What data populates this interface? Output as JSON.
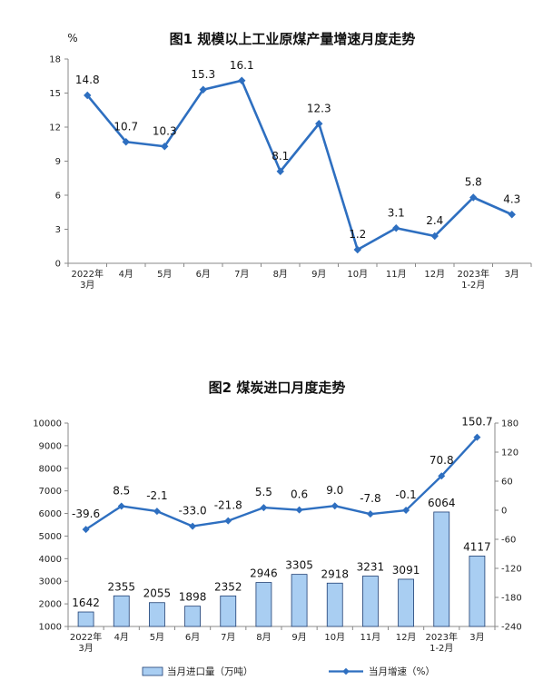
{
  "chart_data": [
    {
      "type": "line",
      "title": "图1  规模以上工业原煤产量增速月度走势",
      "ylabel": "%",
      "ylim": [
        0,
        18
      ],
      "yticks": [
        "0",
        "3",
        "6",
        "9",
        "12",
        "15",
        "18"
      ],
      "categories": [
        [
          "2022年",
          "3月"
        ],
        [
          "4月"
        ],
        [
          "5月"
        ],
        [
          "6月"
        ],
        [
          "7月"
        ],
        [
          "8月"
        ],
        [
          "9月"
        ],
        [
          "10月"
        ],
        [
          "11月"
        ],
        [
          "12月"
        ],
        [
          "2023年",
          "1-2月"
        ],
        [
          "3月"
        ]
      ],
      "series": [
        {
          "values": [
            14.8,
            10.7,
            10.3,
            15.3,
            16.1,
            8.1,
            12.3,
            1.2,
            3.1,
            2.4,
            5.8,
            4.3
          ],
          "labels": [
            "14.8",
            "10.7",
            "10.3",
            "15.3",
            "16.1",
            "8.1",
            "12.3",
            "1.2",
            "3.1",
            "2.4",
            "5.8",
            "4.3"
          ],
          "color": "#2E6FC0"
        }
      ],
      "grid": false
    },
    {
      "type": "bar+line",
      "title": "图2  煤炭进口月度走势",
      "ylim_left": [
        1000,
        10000
      ],
      "yticks_left": [
        "1000",
        "2000",
        "3000",
        "4000",
        "5000",
        "6000",
        "7000",
        "8000",
        "9000",
        "10000"
      ],
      "ylim_right": [
        -240,
        180
      ],
      "yticks_right": [
        "-240",
        "-180",
        "-120",
        "-60",
        "0",
        "60",
        "120",
        "180"
      ],
      "categories": [
        [
          "2022年",
          "3月"
        ],
        [
          "4月"
        ],
        [
          "5月"
        ],
        [
          "6月"
        ],
        [
          "7月"
        ],
        [
          "8月"
        ],
        [
          "9月"
        ],
        [
          "10月"
        ],
        [
          "11月"
        ],
        [
          "12月"
        ],
        [
          "2023年",
          "1-2月"
        ],
        [
          "3月"
        ]
      ],
      "series": [
        {
          "name": "当月进口量（万吨）",
          "kind": "bar",
          "axis": "left",
          "values": [
            1642,
            2355,
            2055,
            1898,
            2352,
            2946,
            3305,
            2918,
            3231,
            3091,
            6064,
            4117
          ],
          "labels": [
            "1642",
            "2355",
            "2055",
            "1898",
            "2352",
            "2946",
            "3305",
            "2918",
            "3231",
            "3091",
            "6064",
            "4117"
          ],
          "color": "#A9CEF2",
          "edge": "#1F3F73"
        },
        {
          "name": "当月增速（%）",
          "kind": "line",
          "axis": "right",
          "values": [
            -39.6,
            8.5,
            -2.1,
            -33.0,
            -21.8,
            5.5,
            0.6,
            9.0,
            -7.8,
            -0.1,
            70.8,
            150.7
          ],
          "labels": [
            "-39.6",
            "8.5",
            "-2.1",
            "-33.0",
            "-21.8",
            "5.5",
            "0.6",
            "9.0",
            "-7.8",
            "-0.1",
            "70.8",
            "150.7"
          ],
          "color": "#2E6FC0"
        }
      ],
      "legend": "bottom",
      "grid": false
    }
  ]
}
